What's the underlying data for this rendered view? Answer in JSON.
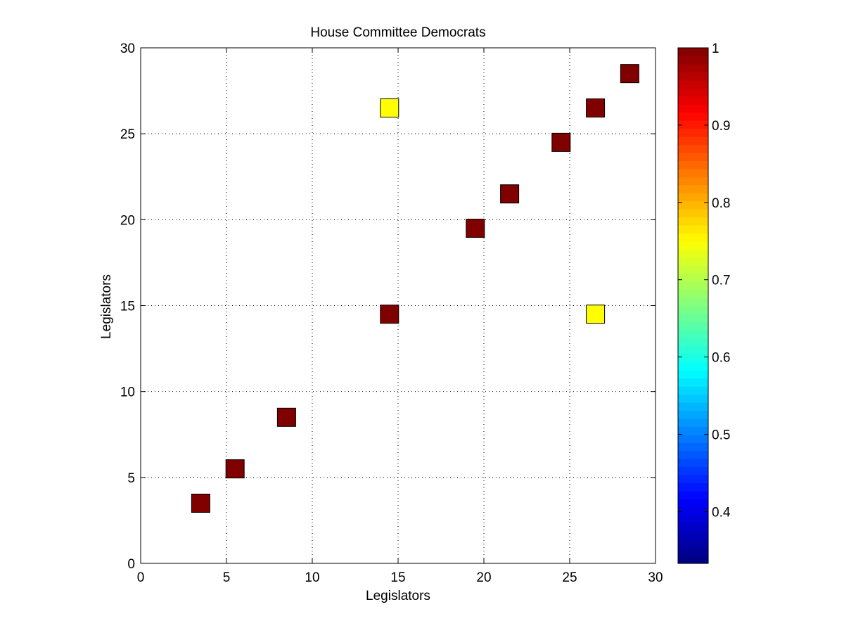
{
  "chart_data": {
    "type": "heatmap",
    "title": "House Committee Democrats",
    "xlabel": "Legislators",
    "ylabel": "Legislators",
    "xlim": [
      0,
      30
    ],
    "ylim": [
      0,
      30
    ],
    "xticks": [
      0,
      5,
      10,
      15,
      20,
      25,
      30
    ],
    "yticks": [
      0,
      5,
      10,
      15,
      20,
      25,
      30
    ],
    "grid": true,
    "colormap": "jet",
    "clim": [
      0.333,
      1
    ],
    "colorbar_ticks": [
      0.4,
      0.5,
      0.6,
      0.7,
      0.8,
      0.9,
      1
    ],
    "colorbar_tick_labels": [
      "0.4",
      "0.5",
      "0.6",
      "0.7",
      "0.8",
      "0.9",
      "1"
    ],
    "cells": [
      {
        "x": 3.5,
        "y": 3.5,
        "value": 1
      },
      {
        "x": 5.5,
        "y": 5.5,
        "value": 1
      },
      {
        "x": 8.5,
        "y": 8.5,
        "value": 1
      },
      {
        "x": 14.5,
        "y": 14.5,
        "value": 1
      },
      {
        "x": 14.5,
        "y": 26.5,
        "value": 0.75
      },
      {
        "x": 19.5,
        "y": 19.5,
        "value": 1
      },
      {
        "x": 21.5,
        "y": 21.5,
        "value": 1
      },
      {
        "x": 24.5,
        "y": 24.5,
        "value": 1
      },
      {
        "x": 26.5,
        "y": 26.5,
        "value": 1
      },
      {
        "x": 26.5,
        "y": 14.5,
        "value": 0.75
      },
      {
        "x": 28.5,
        "y": 28.5,
        "value": 1
      }
    ]
  }
}
